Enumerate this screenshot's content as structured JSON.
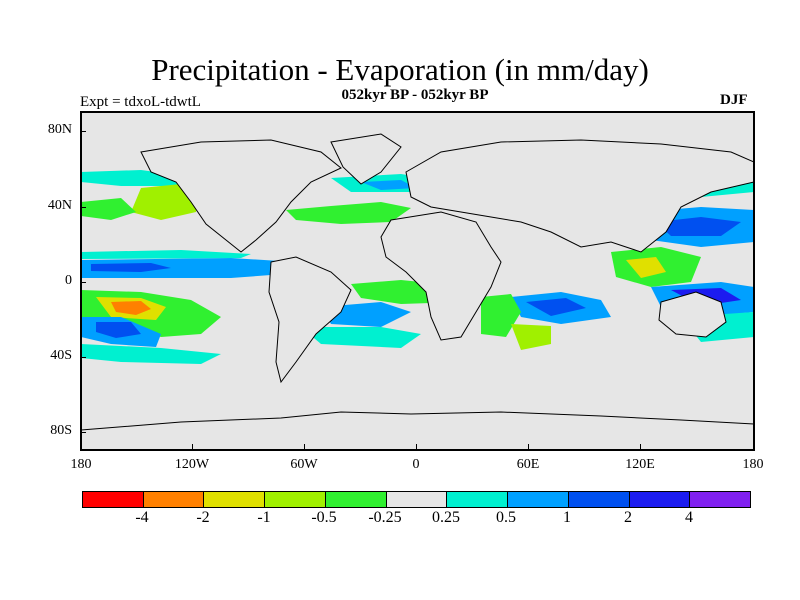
{
  "header": {
    "title": "Precipitation - Evaporation (in mm/day)",
    "subtitle": "052kyr BP - 052kyr BP",
    "experiment": "Expt = tdxoL-tdwtL",
    "season": "DJF"
  },
  "axes": {
    "y_labels": [
      "80N",
      "40N",
      "0",
      "40S",
      "80S"
    ],
    "x_labels": [
      "180",
      "120W",
      "60W",
      "0",
      "60E",
      "120E",
      "180"
    ]
  },
  "colorbar": {
    "colors": [
      "#ff0000",
      "#ff8000",
      "#e0e000",
      "#a0f000",
      "#30f030",
      "#e6e6e6",
      "#00f0d0",
      "#00a0ff",
      "#0050f0",
      "#1c1cf0",
      "#8020f0"
    ],
    "labels": [
      "-4",
      "-2",
      "-1",
      "-0.5",
      "-0.25",
      "0.25",
      "0.5",
      "1",
      "2",
      "4"
    ]
  },
  "map": {
    "land_color": "#e6e6e6",
    "coastline_color": "#000000",
    "projection": "cylindrical equidistant, 180W to 180E"
  }
}
